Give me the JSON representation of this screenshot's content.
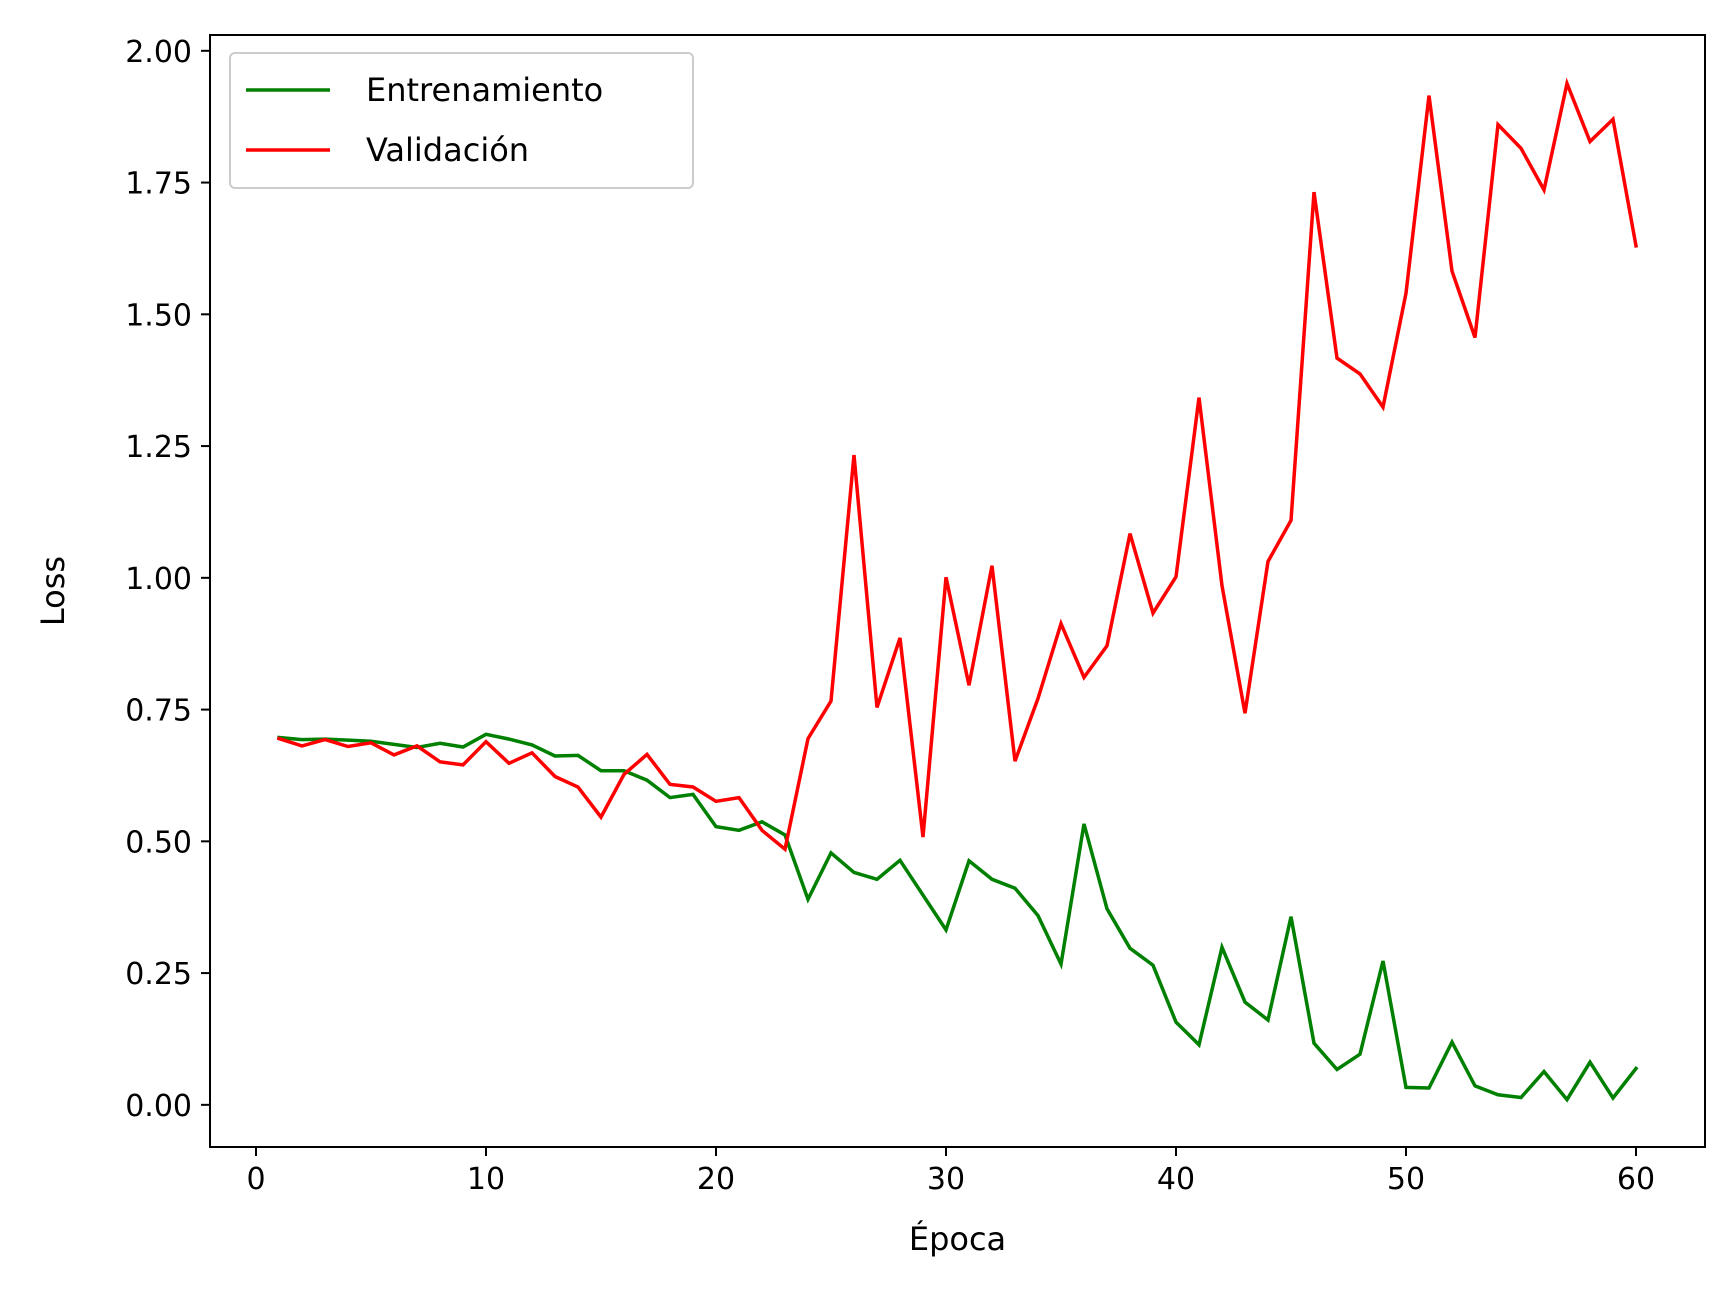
{
  "chart_data": {
    "type": "line",
    "title": "",
    "xlabel": "Época",
    "ylabel": "Loss",
    "xlim": [
      -2,
      63
    ],
    "ylim": [
      -0.08,
      2.03
    ],
    "xticks": [
      0,
      10,
      20,
      30,
      40,
      50,
      60
    ],
    "yticks": [
      0.0,
      0.25,
      0.5,
      0.75,
      1.0,
      1.25,
      1.5,
      1.75,
      2.0
    ],
    "grid": false,
    "legend_position": "top-left",
    "x": [
      1,
      2,
      3,
      4,
      5,
      6,
      7,
      8,
      9,
      10,
      11,
      12,
      13,
      14,
      15,
      16,
      17,
      18,
      19,
      20,
      21,
      22,
      23,
      24,
      25,
      26,
      27,
      28,
      29,
      30,
      31,
      32,
      33,
      34,
      35,
      36,
      37,
      38,
      39,
      40,
      41,
      42,
      43,
      44,
      45,
      46,
      47,
      48,
      49,
      50,
      51,
      52,
      53,
      54,
      55,
      56,
      57,
      58,
      59,
      60
    ],
    "series": [
      {
        "name": "Entrenamiento",
        "color": "#008000",
        "values": [
          0.697,
          0.693,
          0.694,
          0.692,
          0.69,
          0.684,
          0.678,
          0.686,
          0.679,
          0.703,
          0.694,
          0.683,
          0.662,
          0.663,
          0.634,
          0.634,
          0.616,
          0.583,
          0.589,
          0.528,
          0.521,
          0.537,
          0.512,
          0.39,
          0.478,
          0.441,
          0.428,
          0.464,
          0.398,
          0.332,
          0.463,
          0.428,
          0.411,
          0.359,
          0.267,
          0.533,
          0.372,
          0.297,
          0.265,
          0.157,
          0.114,
          0.299,
          0.195,
          0.161,
          0.357,
          0.117,
          0.067,
          0.096,
          0.273,
          0.033,
          0.032,
          0.119,
          0.036,
          0.019,
          0.014,
          0.063,
          0.01,
          0.081,
          0.013,
          0.069
        ]
      },
      {
        "name": "Validación",
        "color": "#ff0000",
        "values": [
          0.695,
          0.681,
          0.693,
          0.68,
          0.687,
          0.664,
          0.681,
          0.651,
          0.645,
          0.689,
          0.648,
          0.668,
          0.623,
          0.603,
          0.546,
          0.627,
          0.665,
          0.608,
          0.603,
          0.576,
          0.583,
          0.521,
          0.485,
          0.695,
          0.766,
          1.233,
          0.754,
          0.886,
          0.508,
          1.001,
          0.796,
          1.023,
          0.652,
          0.771,
          0.913,
          0.811,
          0.871,
          1.084,
          0.933,
          1.002,
          1.342,
          0.985,
          0.743,
          1.031,
          1.109,
          1.732,
          1.417,
          1.387,
          1.324,
          1.54,
          1.915,
          1.582,
          1.456,
          1.86,
          1.815,
          1.736,
          1.938,
          1.828,
          1.87,
          1.63
        ]
      }
    ]
  }
}
